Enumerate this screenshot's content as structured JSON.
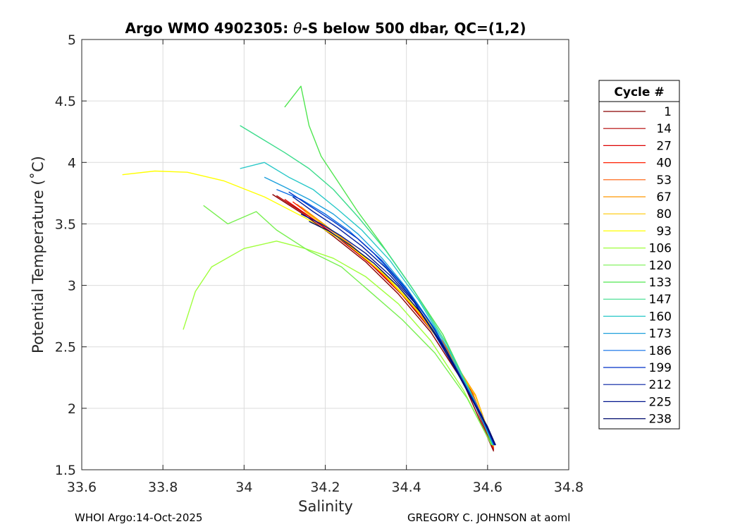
{
  "chart_data": {
    "type": "line",
    "title_prefix": "Argo WMO 4902305: ",
    "title_symbol": "θ",
    "title_suffix": "-S below 500 dbar,  QC=(1,2)",
    "xlabel": "Salinity",
    "ylabel": "Potential Temperature (˚C)",
    "xlim": [
      33.6,
      34.8
    ],
    "ylim": [
      1.5,
      5
    ],
    "xticks": [
      "33.6",
      "33.8",
      "34",
      "34.2",
      "34.4",
      "34.6",
      "34.8"
    ],
    "yticks": [
      "1.5",
      "2",
      "2.5",
      "3",
      "3.5",
      "4",
      "4.5",
      "5"
    ],
    "grid": true,
    "legend_title": "Cycle #",
    "legend_position": "right-outside",
    "series": [
      {
        "name": "1",
        "color": "#8a0000",
        "salinity": [
          34.07,
          34.15,
          34.22,
          34.3,
          34.38,
          34.46,
          34.54,
          34.615
        ],
        "theta": [
          3.74,
          3.57,
          3.4,
          3.19,
          2.93,
          2.62,
          2.21,
          1.65
        ]
      },
      {
        "name": "14",
        "color": "#b40000",
        "salinity": [
          34.08,
          34.16,
          34.23,
          34.31,
          34.39,
          34.47,
          34.55,
          34.615
        ],
        "theta": [
          3.73,
          3.56,
          3.39,
          3.18,
          2.92,
          2.6,
          2.18,
          1.66
        ]
      },
      {
        "name": "27",
        "color": "#dc0000",
        "salinity": [
          34.1,
          34.17,
          34.24,
          34.32,
          34.4,
          34.48,
          34.56,
          34.615
        ],
        "theta": [
          3.7,
          3.54,
          3.37,
          3.15,
          2.89,
          2.56,
          2.14,
          1.67
        ]
      },
      {
        "name": "40",
        "color": "#ff1e00",
        "salinity": [
          34.12,
          34.18,
          34.25,
          34.32,
          34.4,
          34.48,
          34.56,
          34.615
        ],
        "theta": [
          3.68,
          3.53,
          3.36,
          3.16,
          2.9,
          2.58,
          2.15,
          1.68
        ]
      },
      {
        "name": "53",
        "color": "#ff5a00",
        "salinity": [
          34.13,
          34.19,
          34.26,
          34.33,
          34.41,
          34.49,
          34.56,
          34.615
        ],
        "theta": [
          3.66,
          3.51,
          3.34,
          3.13,
          2.87,
          2.54,
          2.15,
          1.68
        ]
      },
      {
        "name": "67",
        "color": "#ff9600",
        "salinity": [
          34.14,
          34.2,
          34.27,
          34.34,
          34.42,
          34.5,
          34.57,
          34.615
        ],
        "theta": [
          3.64,
          3.49,
          3.31,
          3.1,
          2.82,
          2.47,
          2.11,
          1.69
        ]
      },
      {
        "name": "80",
        "color": "#ffc800",
        "salinity": [
          34.15,
          34.21,
          34.28,
          34.35,
          34.43,
          34.5,
          34.57,
          34.615
        ],
        "theta": [
          3.6,
          3.46,
          3.28,
          3.07,
          2.78,
          2.46,
          2.1,
          1.69
        ]
      },
      {
        "name": "93",
        "color": "#ffff00",
        "salinity": [
          33.7,
          33.78,
          33.86,
          33.95,
          34.05,
          34.15,
          34.25,
          34.35,
          34.45,
          34.53,
          34.6
        ],
        "theta": [
          3.9,
          3.93,
          3.92,
          3.85,
          3.72,
          3.55,
          3.35,
          3.08,
          2.72,
          2.3,
          1.85
        ]
      },
      {
        "name": "106",
        "color": "#a0ff3c",
        "salinity": [
          33.85,
          33.88,
          33.92,
          34.0,
          34.08,
          34.15,
          34.22,
          34.3,
          34.38,
          34.46,
          34.54,
          34.61
        ],
        "theta": [
          2.64,
          2.95,
          3.15,
          3.3,
          3.36,
          3.3,
          3.22,
          3.07,
          2.85,
          2.55,
          2.15,
          1.7
        ]
      },
      {
        "name": "120",
        "color": "#78f050",
        "salinity": [
          33.9,
          33.96,
          34.03,
          34.08,
          34.16,
          34.24,
          34.31,
          34.39,
          34.47,
          34.55,
          34.61
        ],
        "theta": [
          3.65,
          3.5,
          3.6,
          3.45,
          3.28,
          3.15,
          2.95,
          2.72,
          2.45,
          2.08,
          1.7
        ]
      },
      {
        "name": "133",
        "color": "#50e650",
        "salinity": [
          34.1,
          34.14,
          34.16,
          34.19,
          34.23,
          34.28,
          34.34,
          34.41,
          34.49,
          34.56,
          34.612
        ],
        "theta": [
          4.45,
          4.62,
          4.3,
          4.05,
          3.85,
          3.6,
          3.33,
          3.0,
          2.6,
          2.12,
          1.7
        ]
      },
      {
        "name": "147",
        "color": "#3cdc8c",
        "salinity": [
          33.99,
          34.05,
          34.1,
          34.16,
          34.22,
          34.28,
          34.35,
          34.42,
          34.5,
          34.57,
          34.613
        ],
        "theta": [
          4.3,
          4.18,
          4.08,
          3.95,
          3.78,
          3.56,
          3.28,
          2.95,
          2.52,
          2.05,
          1.7
        ]
      },
      {
        "name": "160",
        "color": "#28c8c8",
        "salinity": [
          33.99,
          34.05,
          34.11,
          34.17,
          34.23,
          34.29,
          34.36,
          34.43,
          34.5,
          34.57,
          34.614
        ],
        "theta": [
          3.95,
          4.0,
          3.88,
          3.78,
          3.62,
          3.45,
          3.2,
          2.88,
          2.5,
          2.05,
          1.7
        ]
      },
      {
        "name": "173",
        "color": "#1ea0dc",
        "salinity": [
          34.05,
          34.1,
          34.16,
          34.22,
          34.28,
          34.34,
          34.4,
          34.47,
          34.53,
          34.58,
          34.615
        ],
        "theta": [
          3.88,
          3.8,
          3.7,
          3.58,
          3.42,
          3.22,
          2.98,
          2.65,
          2.28,
          1.95,
          1.7
        ]
      },
      {
        "name": "186",
        "color": "#0a6ee6",
        "salinity": [
          34.08,
          34.14,
          34.2,
          34.26,
          34.32,
          34.38,
          34.45,
          34.52,
          34.58,
          34.616
        ],
        "theta": [
          3.78,
          3.7,
          3.58,
          3.44,
          3.26,
          3.04,
          2.74,
          2.35,
          1.97,
          1.7
        ]
      },
      {
        "name": "199",
        "color": "#0032c8",
        "salinity": [
          34.11,
          34.16,
          34.22,
          34.28,
          34.34,
          34.4,
          34.47,
          34.53,
          34.585,
          34.617
        ],
        "theta": [
          3.76,
          3.65,
          3.52,
          3.38,
          3.2,
          2.97,
          2.64,
          2.28,
          1.95,
          1.7
        ]
      },
      {
        "name": "212",
        "color": "#001ea0",
        "salinity": [
          34.12,
          34.17,
          34.23,
          34.29,
          34.35,
          34.41,
          34.47,
          34.54,
          34.59,
          34.618
        ],
        "theta": [
          3.72,
          3.6,
          3.47,
          3.32,
          3.14,
          2.91,
          2.6,
          2.21,
          1.9,
          1.7
        ]
      },
      {
        "name": "225",
        "color": "#00148c",
        "salinity": [
          34.14,
          34.19,
          34.24,
          34.3,
          34.36,
          34.42,
          34.48,
          34.54,
          34.59,
          34.619
        ],
        "theta": [
          3.58,
          3.5,
          3.4,
          3.26,
          3.08,
          2.86,
          2.56,
          2.2,
          1.9,
          1.7
        ]
      },
      {
        "name": "238",
        "color": "#000a6e",
        "salinity": [
          34.16,
          34.21,
          34.26,
          34.32,
          34.38,
          34.44,
          34.5,
          34.55,
          34.6,
          34.62
        ],
        "theta": [
          3.52,
          3.44,
          3.33,
          3.18,
          2.99,
          2.76,
          2.46,
          2.14,
          1.85,
          1.7
        ]
      }
    ]
  },
  "footer": {
    "left": "WHOI Argo:14-Oct-2025",
    "right": "GREGORY C. JOHNSON at aoml"
  }
}
